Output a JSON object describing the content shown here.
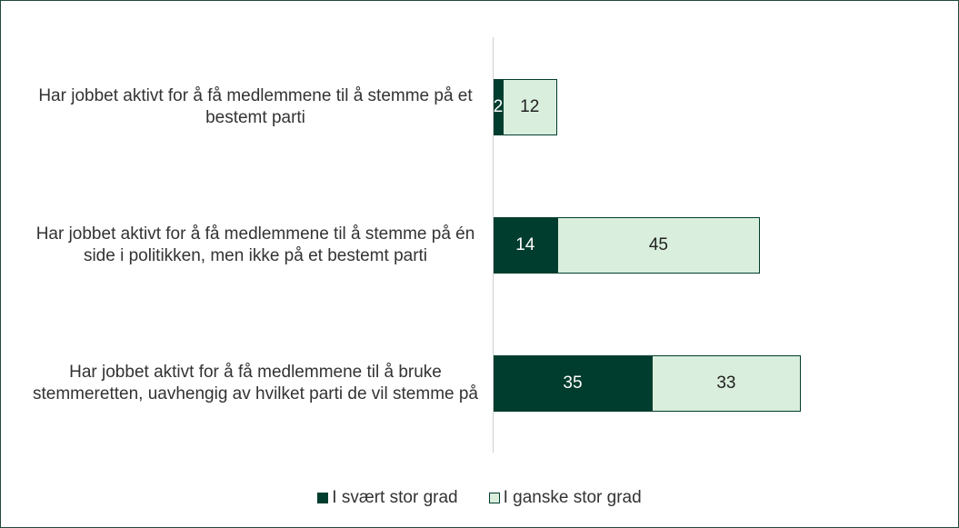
{
  "chart_data": {
    "type": "stacked-barh",
    "categories": [
      "Har jobbet aktivt for å få medlemmene til å stemme på et bestemt parti",
      "Har jobbet aktivt for å få medlemmene til å stemme på én side i politikken, men ikke på et bestemt parti",
      "Har jobbet aktivt for å få medlemmene til å bruke stemmeretten, uavhengig av hvilket parti de vil stemme på"
    ],
    "series": [
      {
        "name": "I svært stor grad",
        "color": "#003d2e",
        "values": [
          2,
          14,
          35
        ]
      },
      {
        "name": "I ganske stor grad",
        "color": "#d9eedc",
        "values": [
          12,
          45,
          33
        ]
      }
    ],
    "legend": "bottom"
  }
}
